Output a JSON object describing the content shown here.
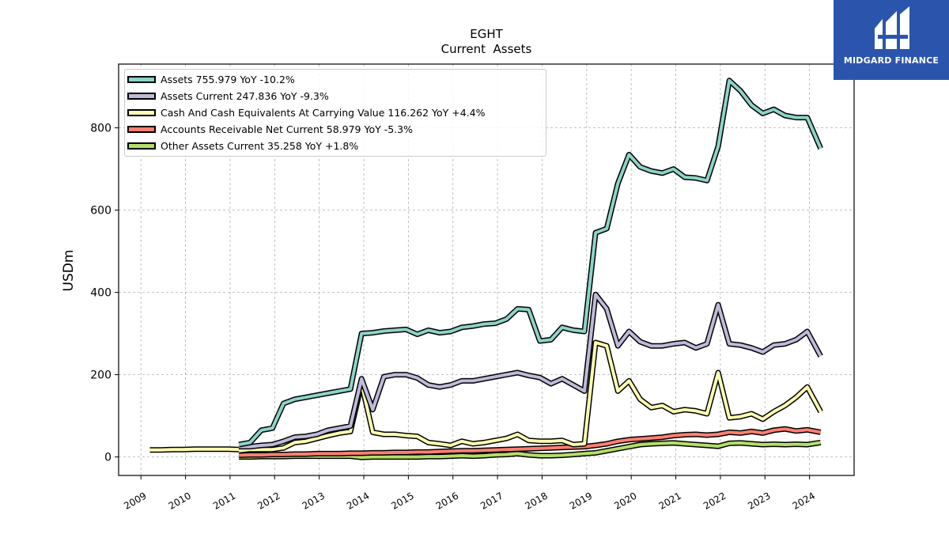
{
  "chart_data": {
    "type": "line",
    "title": "EGHT",
    "subtitle": "Current  Assets",
    "ylabel": "USDm",
    "xlabel": "",
    "ylim": [
      -45,
      955
    ],
    "xlim": [
      2008.5,
      2025.0
    ],
    "yticks": [
      0,
      200,
      400,
      600,
      800
    ],
    "xticks": [
      2009,
      2010,
      2011,
      2012,
      2013,
      2014,
      2015,
      2016,
      2017,
      2018,
      2019,
      2020,
      2021,
      2022,
      2023,
      2024
    ],
    "grid": true,
    "legend_position": "top-left",
    "series": [
      {
        "name": "Assets",
        "legend": "Assets  755.979 YoY -10.2%",
        "color": "#8dd3c7",
        "points": [
          [
            2011.2,
            30
          ],
          [
            2011.45,
            35
          ],
          [
            2011.7,
            65
          ],
          [
            2011.95,
            70
          ],
          [
            2012.2,
            130
          ],
          [
            2012.45,
            140
          ],
          [
            2012.7,
            145
          ],
          [
            2012.95,
            150
          ],
          [
            2013.2,
            155
          ],
          [
            2013.45,
            160
          ],
          [
            2013.7,
            165
          ],
          [
            2013.95,
            300
          ],
          [
            2014.2,
            302
          ],
          [
            2014.45,
            306
          ],
          [
            2014.7,
            308
          ],
          [
            2014.95,
            310
          ],
          [
            2015.2,
            298
          ],
          [
            2015.45,
            308
          ],
          [
            2015.7,
            302
          ],
          [
            2015.95,
            305
          ],
          [
            2016.2,
            315
          ],
          [
            2016.45,
            318
          ],
          [
            2016.7,
            323
          ],
          [
            2016.95,
            325
          ],
          [
            2017.2,
            335
          ],
          [
            2017.45,
            360
          ],
          [
            2017.7,
            358
          ],
          [
            2017.95,
            282
          ],
          [
            2018.2,
            285
          ],
          [
            2018.45,
            315
          ],
          [
            2018.7,
            308
          ],
          [
            2018.95,
            305
          ],
          [
            2019.2,
            545
          ],
          [
            2019.45,
            555
          ],
          [
            2019.7,
            665
          ],
          [
            2019.95,
            735
          ],
          [
            2020.2,
            705
          ],
          [
            2020.45,
            695
          ],
          [
            2020.7,
            690
          ],
          [
            2020.95,
            700
          ],
          [
            2021.2,
            680
          ],
          [
            2021.45,
            678
          ],
          [
            2021.7,
            672
          ],
          [
            2021.95,
            755
          ],
          [
            2022.2,
            915
          ],
          [
            2022.45,
            890
          ],
          [
            2022.7,
            855
          ],
          [
            2022.95,
            835
          ],
          [
            2023.2,
            845
          ],
          [
            2023.45,
            830
          ],
          [
            2023.7,
            825
          ],
          [
            2023.95,
            825
          ],
          [
            2024.25,
            750
          ]
        ]
      },
      {
        "name": "Assets Current",
        "legend": "Assets Current  247.836 YoY -9.3%",
        "color": "#bebada",
        "points": [
          [
            2011.2,
            25
          ],
          [
            2011.45,
            25
          ],
          [
            2011.7,
            28
          ],
          [
            2011.95,
            30
          ],
          [
            2012.2,
            38
          ],
          [
            2012.45,
            48
          ],
          [
            2012.7,
            50
          ],
          [
            2012.95,
            55
          ],
          [
            2013.2,
            65
          ],
          [
            2013.45,
            70
          ],
          [
            2013.7,
            75
          ],
          [
            2013.95,
            190
          ],
          [
            2014.2,
            115
          ],
          [
            2014.45,
            195
          ],
          [
            2014.7,
            200
          ],
          [
            2014.95,
            200
          ],
          [
            2015.2,
            192
          ],
          [
            2015.45,
            175
          ],
          [
            2015.7,
            170
          ],
          [
            2015.95,
            175
          ],
          [
            2016.2,
            185
          ],
          [
            2016.45,
            185
          ],
          [
            2016.7,
            190
          ],
          [
            2016.95,
            195
          ],
          [
            2017.2,
            200
          ],
          [
            2017.45,
            205
          ],
          [
            2017.7,
            198
          ],
          [
            2017.95,
            193
          ],
          [
            2018.2,
            178
          ],
          [
            2018.45,
            190
          ],
          [
            2018.7,
            175
          ],
          [
            2018.95,
            160
          ],
          [
            2019.2,
            395
          ],
          [
            2019.45,
            360
          ],
          [
            2019.7,
            270
          ],
          [
            2019.95,
            305
          ],
          [
            2020.2,
            280
          ],
          [
            2020.45,
            270
          ],
          [
            2020.7,
            270
          ],
          [
            2020.95,
            275
          ],
          [
            2021.2,
            278
          ],
          [
            2021.45,
            265
          ],
          [
            2021.7,
            275
          ],
          [
            2021.95,
            370
          ],
          [
            2022.2,
            275
          ],
          [
            2022.45,
            272
          ],
          [
            2022.7,
            265
          ],
          [
            2022.95,
            255
          ],
          [
            2023.2,
            272
          ],
          [
            2023.45,
            275
          ],
          [
            2023.7,
            285
          ],
          [
            2023.95,
            305
          ],
          [
            2024.25,
            245
          ]
        ]
      },
      {
        "name": "Cash And Cash Equivalents At Carrying Value",
        "legend": "Cash And Cash Equivalents At Carrying Value  116.262 YoY +4.4%",
        "color": "#ffffb3",
        "points": [
          [
            2011.2,
            15
          ],
          [
            2011.45,
            18
          ],
          [
            2011.7,
            18
          ],
          [
            2011.95,
            18
          ],
          [
            2012.2,
            22
          ],
          [
            2012.45,
            35
          ],
          [
            2012.7,
            38
          ],
          [
            2012.95,
            45
          ],
          [
            2013.2,
            52
          ],
          [
            2013.45,
            58
          ],
          [
            2013.7,
            62
          ],
          [
            2013.95,
            178
          ],
          [
            2014.2,
            60
          ],
          [
            2014.45,
            55
          ],
          [
            2014.7,
            55
          ],
          [
            2014.95,
            52
          ],
          [
            2015.2,
            50
          ],
          [
            2015.45,
            35
          ],
          [
            2015.7,
            32
          ],
          [
            2015.95,
            28
          ],
          [
            2016.2,
            38
          ],
          [
            2016.45,
            32
          ],
          [
            2016.7,
            35
          ],
          [
            2016.95,
            40
          ],
          [
            2017.2,
            45
          ],
          [
            2017.45,
            55
          ],
          [
            2017.7,
            40
          ],
          [
            2017.95,
            38
          ],
          [
            2018.2,
            38
          ],
          [
            2018.45,
            40
          ],
          [
            2018.7,
            30
          ],
          [
            2018.95,
            32
          ],
          [
            2019.2,
            278
          ],
          [
            2019.45,
            270
          ],
          [
            2019.7,
            160
          ],
          [
            2019.95,
            185
          ],
          [
            2020.2,
            140
          ],
          [
            2020.45,
            120
          ],
          [
            2020.7,
            125
          ],
          [
            2020.95,
            110
          ],
          [
            2021.2,
            115
          ],
          [
            2021.45,
            112
          ],
          [
            2021.7,
            105
          ],
          [
            2021.95,
            205
          ],
          [
            2022.2,
            95
          ],
          [
            2022.45,
            98
          ],
          [
            2022.7,
            105
          ],
          [
            2022.95,
            92
          ],
          [
            2023.2,
            110
          ],
          [
            2023.45,
            125
          ],
          [
            2023.7,
            145
          ],
          [
            2023.95,
            170
          ],
          [
            2024.25,
            110
          ]
        ]
      },
      {
        "name": "Accounts Receivable Net Current",
        "legend": "Accounts Receivable Net Current  58.979 YoY -5.3%",
        "color": "#fb8072",
        "points": [
          [
            2011.2,
            4
          ],
          [
            2011.45,
            5
          ],
          [
            2011.7,
            5
          ],
          [
            2011.95,
            6
          ],
          [
            2012.2,
            6
          ],
          [
            2012.45,
            7
          ],
          [
            2012.7,
            7
          ],
          [
            2012.95,
            8
          ],
          [
            2013.2,
            8
          ],
          [
            2013.45,
            8
          ],
          [
            2013.7,
            9
          ],
          [
            2013.95,
            9
          ],
          [
            2014.2,
            10
          ],
          [
            2014.45,
            10
          ],
          [
            2014.7,
            11
          ],
          [
            2014.95,
            11
          ],
          [
            2015.2,
            12
          ],
          [
            2015.45,
            12
          ],
          [
            2015.7,
            13
          ],
          [
            2015.95,
            14
          ],
          [
            2016.2,
            15
          ],
          [
            2016.45,
            15
          ],
          [
            2016.7,
            16
          ],
          [
            2016.95,
            17
          ],
          [
            2017.2,
            18
          ],
          [
            2017.45,
            19
          ],
          [
            2017.7,
            20
          ],
          [
            2017.95,
            21
          ],
          [
            2018.2,
            22
          ],
          [
            2018.45,
            23
          ],
          [
            2018.7,
            24
          ],
          [
            2018.95,
            25
          ],
          [
            2019.2,
            28
          ],
          [
            2019.45,
            32
          ],
          [
            2019.7,
            38
          ],
          [
            2019.95,
            42
          ],
          [
            2020.2,
            44
          ],
          [
            2020.45,
            46
          ],
          [
            2020.7,
            48
          ],
          [
            2020.95,
            52
          ],
          [
            2021.2,
            54
          ],
          [
            2021.45,
            55
          ],
          [
            2021.7,
            53
          ],
          [
            2021.95,
            55
          ],
          [
            2022.2,
            60
          ],
          [
            2022.45,
            58
          ],
          [
            2022.7,
            62
          ],
          [
            2022.95,
            58
          ],
          [
            2023.2,
            65
          ],
          [
            2023.45,
            68
          ],
          [
            2023.7,
            63
          ],
          [
            2023.95,
            66
          ],
          [
            2024.25,
            60
          ]
        ]
      },
      {
        "name": "Other Assets Current",
        "legend": "Other Assets Current  35.258 YoY +1.8%",
        "color": "#b3de69",
        "points": [
          [
            2011.2,
            0
          ],
          [
            2011.45,
            0
          ],
          [
            2011.7,
            1
          ],
          [
            2011.95,
            1
          ],
          [
            2012.2,
            1
          ],
          [
            2012.45,
            2
          ],
          [
            2012.7,
            2
          ],
          [
            2012.95,
            2
          ],
          [
            2013.2,
            2
          ],
          [
            2013.45,
            2
          ],
          [
            2013.7,
            2
          ],
          [
            2013.95,
            -1
          ],
          [
            2014.2,
            0
          ],
          [
            2014.45,
            0
          ],
          [
            2014.7,
            0
          ],
          [
            2014.95,
            0
          ],
          [
            2015.2,
            0
          ],
          [
            2015.45,
            1
          ],
          [
            2015.7,
            1
          ],
          [
            2015.95,
            2
          ],
          [
            2016.2,
            3
          ],
          [
            2016.45,
            2
          ],
          [
            2016.7,
            3
          ],
          [
            2016.95,
            5
          ],
          [
            2017.2,
            6
          ],
          [
            2017.45,
            8
          ],
          [
            2017.7,
            5
          ],
          [
            2017.95,
            3
          ],
          [
            2018.2,
            3
          ],
          [
            2018.45,
            4
          ],
          [
            2018.7,
            6
          ],
          [
            2018.95,
            8
          ],
          [
            2019.2,
            10
          ],
          [
            2019.45,
            15
          ],
          [
            2019.7,
            20
          ],
          [
            2019.95,
            25
          ],
          [
            2020.2,
            30
          ],
          [
            2020.45,
            32
          ],
          [
            2020.7,
            33
          ],
          [
            2020.95,
            34
          ],
          [
            2021.2,
            32
          ],
          [
            2021.45,
            30
          ],
          [
            2021.7,
            28
          ],
          [
            2021.95,
            26
          ],
          [
            2022.2,
            33
          ],
          [
            2022.45,
            34
          ],
          [
            2022.7,
            32
          ],
          [
            2022.95,
            30
          ],
          [
            2023.2,
            31
          ],
          [
            2023.45,
            30
          ],
          [
            2023.7,
            31
          ],
          [
            2023.95,
            30
          ],
          [
            2024.25,
            35
          ]
        ]
      },
      {
        "name": "",
        "legend": "",
        "color": "#ffffb3",
        "points": [
          [
            2009.2,
            17
          ],
          [
            2009.45,
            17
          ],
          [
            2009.7,
            18
          ],
          [
            2009.95,
            18
          ],
          [
            2010.2,
            19
          ],
          [
            2010.45,
            19
          ],
          [
            2010.7,
            19
          ],
          [
            2010.95,
            19
          ],
          [
            2011.2,
            18
          ]
        ]
      }
    ]
  },
  "logo": {
    "text": "MIDGARD FINANCE",
    "background": "#2b55ad",
    "text_color": "#ffffff"
  }
}
